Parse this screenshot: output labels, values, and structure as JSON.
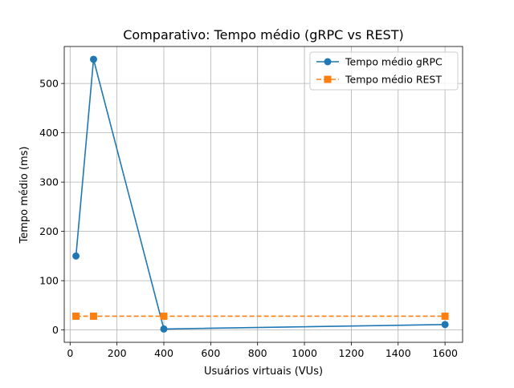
{
  "chart_data": {
    "type": "line",
    "title": "Comparativo: Tempo médio (gRPC vs REST)",
    "xlabel": "Usuários virtuais (VUs)",
    "ylabel": "Tempo médio (ms)",
    "xlim": [
      -25,
      1675
    ],
    "ylim": [
      -25,
      575
    ],
    "xticks": [
      0,
      200,
      400,
      600,
      800,
      1000,
      1200,
      1400,
      1600
    ],
    "yticks": [
      0,
      100,
      200,
      300,
      400,
      500
    ],
    "grid": true,
    "legend_position": "upper right",
    "series": [
      {
        "name": "Tempo médio gRPC",
        "x": [
          25,
          100,
          400,
          1600
        ],
        "y": [
          150,
          549,
          2,
          11
        ],
        "color": "#1f77b4",
        "marker": "circle",
        "linestyle": "solid"
      },
      {
        "name": "Tempo médio REST",
        "x": [
          25,
          100,
          400,
          1600
        ],
        "y": [
          28,
          28,
          28,
          28
        ],
        "color": "#ff7f0e",
        "marker": "square",
        "linestyle": "dashed"
      }
    ]
  }
}
